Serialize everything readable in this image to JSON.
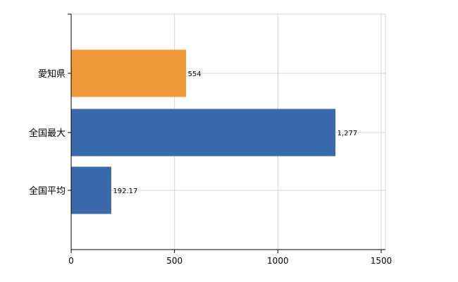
{
  "chart_data": {
    "type": "bar",
    "orientation": "horizontal",
    "categories": [
      "愛知県",
      "全国最大",
      "全国平均"
    ],
    "values": [
      554,
      1277,
      192.17
    ],
    "value_labels": [
      "554",
      "1,277",
      "192.17"
    ],
    "bar_colors": [
      "#f0973a",
      "#3a6aab",
      "#3a6aab"
    ],
    "xlim": [
      0,
      1500
    ],
    "xticks": [
      0,
      500,
      1000,
      1500
    ],
    "tick_labels": [
      "0",
      "500",
      "1000",
      "1500"
    ],
    "grid": true,
    "title": "",
    "xlabel": "",
    "ylabel": ""
  }
}
